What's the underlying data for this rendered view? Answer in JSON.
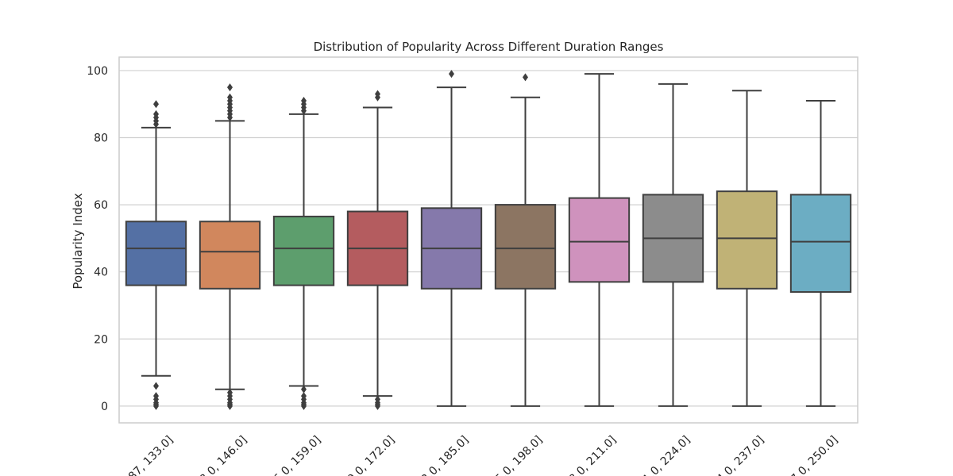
{
  "chart_data": {
    "type": "box",
    "title": "Distribution of Popularity Across Different Duration Ranges",
    "xlabel": "",
    "ylabel": "Popularity Index",
    "ylim": [
      -5,
      104
    ],
    "yticks": [
      0,
      20,
      40,
      60,
      80,
      100
    ],
    "grid": true,
    "categories": [
      "87, 133.0]",
      "3.0, 146.0]",
      "6.0, 159.0]",
      "9.0, 172.0]",
      "2.0, 185.0]",
      "5.0, 198.0]",
      "8.0, 211.0]",
      "1.0, 224.0]",
      "4.0, 237.0]",
      "7.0, 250.0]"
    ],
    "colors": [
      "#5470a4",
      "#d1875d",
      "#5d9e6d",
      "#b45c5f",
      "#8579ab",
      "#8c7562",
      "#cf92bd",
      "#8c8c8c",
      "#c0b276",
      "#6cadc3"
    ],
    "boxes": [
      {
        "whisker_low": 9,
        "q1": 36,
        "median": 47,
        "q3": 55,
        "whisker_high": 83,
        "outliers": [
          0,
          0.5,
          1,
          2,
          3,
          6,
          84,
          85,
          86,
          87,
          90
        ]
      },
      {
        "whisker_low": 5,
        "q1": 35,
        "median": 46,
        "q3": 55,
        "whisker_high": 85,
        "outliers": [
          0,
          0.5,
          1,
          2,
          3,
          4,
          86,
          87,
          88,
          89,
          90,
          91,
          92,
          95
        ]
      },
      {
        "whisker_low": 6,
        "q1": 36,
        "median": 47,
        "q3": 56.5,
        "whisker_high": 87,
        "outliers": [
          0,
          0.5,
          1,
          2,
          3,
          5,
          88,
          89,
          90,
          91
        ]
      },
      {
        "whisker_low": 3,
        "q1": 36,
        "median": 47,
        "q3": 58,
        "whisker_high": 89,
        "outliers": [
          0,
          0.5,
          1,
          2,
          92,
          93
        ]
      },
      {
        "whisker_low": 0,
        "q1": 35,
        "median": 47,
        "q3": 59,
        "whisker_high": 95,
        "outliers": [
          99
        ]
      },
      {
        "whisker_low": 0,
        "q1": 35,
        "median": 47,
        "q3": 60,
        "whisker_high": 92,
        "outliers": [
          98
        ]
      },
      {
        "whisker_low": 0,
        "q1": 37,
        "median": 49,
        "q3": 62,
        "whisker_high": 99,
        "outliers": []
      },
      {
        "whisker_low": 0,
        "q1": 37,
        "median": 50,
        "q3": 63,
        "whisker_high": 96,
        "outliers": []
      },
      {
        "whisker_low": 0,
        "q1": 35,
        "median": 50,
        "q3": 64,
        "whisker_high": 94,
        "outliers": []
      },
      {
        "whisker_low": 0,
        "q1": 34,
        "median": 49,
        "q3": 63,
        "whisker_high": 91,
        "outliers": []
      }
    ]
  }
}
